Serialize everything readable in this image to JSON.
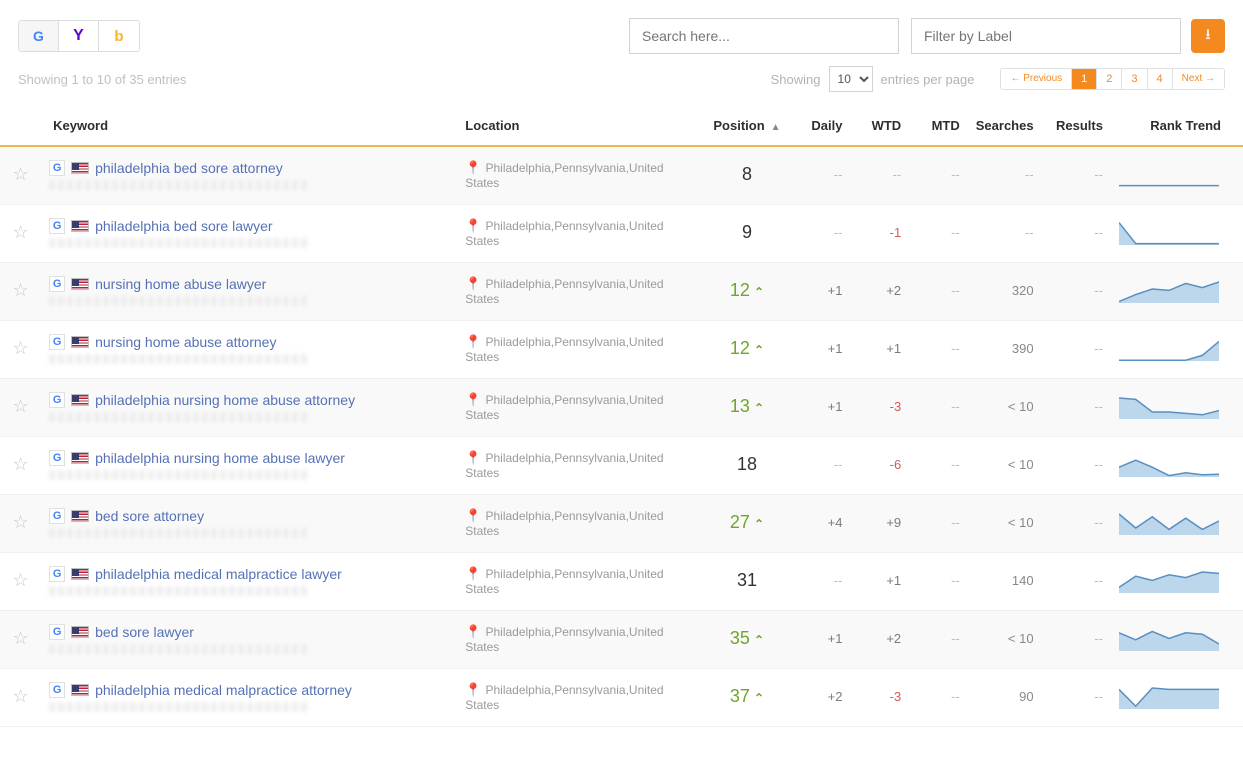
{
  "toolbar": {
    "engines": [
      "G",
      "Y",
      "b"
    ],
    "activeEngine": 0,
    "searchPlaceholder": "Search here...",
    "filterPlaceholder": "Filter by Label"
  },
  "meta": {
    "showingText": "Showing 1 to 10 of 35 entries",
    "perPageLabelLeft": "Showing",
    "perPageLabelRight": "entries per page",
    "perPageValue": "10",
    "pagination": {
      "prev": "← Previous",
      "pages": [
        "1",
        "2",
        "3",
        "4"
      ],
      "current": 0,
      "next": "Next →"
    }
  },
  "columns": {
    "keyword": "Keyword",
    "location": "Location",
    "position": "Position",
    "daily": "Daily",
    "wtd": "WTD",
    "mtd": "MTD",
    "searches": "Searches",
    "results": "Results",
    "trend": "Rank Trend"
  },
  "colors": {
    "accent": "#f48a1f",
    "headerRule": "#f0b64b",
    "link": "#5571b5",
    "positive": "#6fa62d",
    "negative": "#d25b5b",
    "sparkFill": "#bcd6ec",
    "sparkStroke": "#5a8fbf"
  },
  "rows": [
    {
      "keyword": "philadelphia bed sore attorney",
      "location": "Philadelphia,Pennsylvania,United States",
      "position": "8",
      "posUp": false,
      "daily": "--",
      "wtd": "--",
      "mtd": "--",
      "searches": "--",
      "results": "--",
      "spark": {
        "pts": [
          0.95,
          0.95,
          0.95,
          0.95,
          0.95,
          0.95,
          0.95
        ],
        "fill": false
      }
    },
    {
      "keyword": "philadelphia bed sore lawyer",
      "location": "Philadelphia,Pennsylvania,United States",
      "position": "9",
      "posUp": false,
      "daily": "--",
      "wtd": "-1",
      "mtd": "--",
      "searches": "--",
      "results": "--",
      "spark": {
        "pts": [
          0.2,
          0.95,
          0.95,
          0.95,
          0.95,
          0.95,
          0.95
        ],
        "fill": true
      }
    },
    {
      "keyword": "nursing home abuse lawyer",
      "location": "Philadelphia,Pennsylvania,United States",
      "position": "12",
      "posUp": true,
      "daily": "+1",
      "wtd": "+2",
      "mtd": "--",
      "searches": "320",
      "results": "--",
      "spark": {
        "pts": [
          0.95,
          0.7,
          0.5,
          0.55,
          0.3,
          0.45,
          0.25
        ],
        "fill": true
      }
    },
    {
      "keyword": "nursing home abuse attorney",
      "location": "Philadelphia,Pennsylvania,United States",
      "position": "12",
      "posUp": true,
      "daily": "+1",
      "wtd": "+1",
      "mtd": "--",
      "searches": "390",
      "results": "--",
      "spark": {
        "pts": [
          0.97,
          0.97,
          0.97,
          0.97,
          0.97,
          0.8,
          0.3
        ],
        "fill": true
      }
    },
    {
      "keyword": "philadelphia nursing home abuse attorney",
      "location": "Philadelphia,Pennsylvania,United States",
      "position": "13",
      "posUp": true,
      "daily": "+1",
      "wtd": "-3",
      "mtd": "--",
      "searches": "< 10",
      "results": "--",
      "spark": {
        "pts": [
          0.25,
          0.3,
          0.75,
          0.75,
          0.8,
          0.85,
          0.7
        ],
        "fill": true
      }
    },
    {
      "keyword": "philadelphia nursing home abuse lawyer",
      "location": "Philadelphia,Pennsylvania,United States",
      "position": "18",
      "posUp": false,
      "daily": "--",
      "wtd": "-6",
      "mtd": "--",
      "searches": "< 10",
      "results": "--",
      "spark": {
        "pts": [
          0.65,
          0.4,
          0.65,
          0.95,
          0.85,
          0.92,
          0.9
        ],
        "fill": true
      }
    },
    {
      "keyword": "bed sore attorney",
      "location": "Philadelphia,Pennsylvania,United States",
      "position": "27",
      "posUp": true,
      "daily": "+4",
      "wtd": "+9",
      "mtd": "--",
      "searches": "< 10",
      "results": "--",
      "spark": {
        "pts": [
          0.25,
          0.75,
          0.35,
          0.8,
          0.4,
          0.8,
          0.5
        ],
        "fill": true
      }
    },
    {
      "keyword": "philadelphia medical malpractice lawyer",
      "location": "Philadelphia,Pennsylvania,United States",
      "position": "31",
      "posUp": false,
      "daily": "--",
      "wtd": "+1",
      "mtd": "--",
      "searches": "140",
      "results": "--",
      "spark": {
        "pts": [
          0.8,
          0.4,
          0.55,
          0.35,
          0.45,
          0.25,
          0.3
        ],
        "fill": true
      }
    },
    {
      "keyword": "bed sore lawyer",
      "location": "Philadelphia,Pennsylvania,United States",
      "position": "35",
      "posUp": true,
      "daily": "+1",
      "wtd": "+2",
      "mtd": "--",
      "searches": "< 10",
      "results": "--",
      "spark": {
        "pts": [
          0.35,
          0.6,
          0.3,
          0.55,
          0.35,
          0.4,
          0.75
        ],
        "fill": true
      }
    },
    {
      "keyword": "philadelphia medical malpractice attorney",
      "location": "Philadelphia,Pennsylvania,United States",
      "position": "37",
      "posUp": true,
      "daily": "+2",
      "wtd": "-3",
      "mtd": "--",
      "searches": "90",
      "results": "--",
      "spark": {
        "pts": [
          0.3,
          0.9,
          0.25,
          0.3,
          0.3,
          0.3,
          0.3
        ],
        "fill": true
      }
    }
  ]
}
